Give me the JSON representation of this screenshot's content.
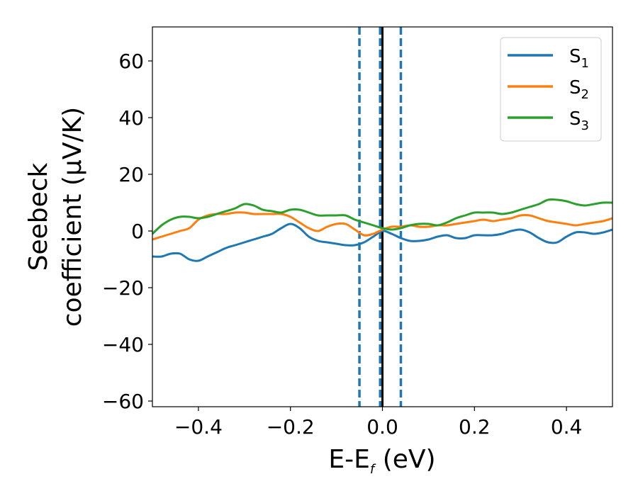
{
  "chart_data": {
    "type": "line",
    "xlabel": {
      "main": "E-E",
      "sub": "f",
      "tail": " (eV)"
    },
    "ylabel": {
      "line1": "Seebeck",
      "line2": "coefficient  (μV/K)"
    },
    "xlim": [
      -0.5,
      0.5
    ],
    "ylim": [
      -62,
      72
    ],
    "xticks": [
      -0.4,
      -0.2,
      0.0,
      0.2,
      0.4
    ],
    "xtick_labels": [
      "−0.4",
      "−0.2",
      "0.0",
      "0.2",
      "0.4"
    ],
    "yticks": [
      -60,
      -40,
      -20,
      0,
      20,
      40,
      60
    ],
    "ytick_labels": [
      "−60",
      "−40",
      "−20",
      "0",
      "20",
      "40",
      "60"
    ],
    "grid": false,
    "legend_position": "top-right",
    "vertical_lines": [
      {
        "x": -0.05,
        "style": "dashed",
        "color": "#1f77b4"
      },
      {
        "x": -0.005,
        "style": "dashed",
        "color": "#1f77b4"
      },
      {
        "x": 0.0,
        "style": "solid",
        "color": "#000000"
      },
      {
        "x": 0.04,
        "style": "dashed",
        "color": "#1f77b4"
      }
    ],
    "series": [
      {
        "name": "S",
        "sub": "1",
        "color": "#1f77b4",
        "x": [
          -0.5,
          -0.48,
          -0.46,
          -0.44,
          -0.42,
          -0.4,
          -0.38,
          -0.36,
          -0.34,
          -0.32,
          -0.3,
          -0.28,
          -0.26,
          -0.24,
          -0.22,
          -0.2,
          -0.18,
          -0.16,
          -0.14,
          -0.12,
          -0.1,
          -0.08,
          -0.06,
          -0.04,
          -0.02,
          0.0,
          0.02,
          0.04,
          0.06,
          0.08,
          0.1,
          0.12,
          0.14,
          0.16,
          0.18,
          0.2,
          0.22,
          0.24,
          0.26,
          0.28,
          0.3,
          0.32,
          0.34,
          0.36,
          0.38,
          0.4,
          0.42,
          0.44,
          0.46,
          0.48,
          0.5
        ],
        "y": [
          -9,
          -9,
          -8,
          -8,
          -10,
          -10.5,
          -9,
          -7.5,
          -6,
          -5,
          -4,
          -3,
          -2,
          -1,
          1,
          2.5,
          1,
          -2,
          -3.5,
          -4,
          -4.5,
          -5,
          -5,
          -4,
          -2,
          0,
          -1,
          -2.5,
          -3.5,
          -3.5,
          -3,
          -2,
          -1.5,
          -2.5,
          -2.5,
          -1.5,
          -1.5,
          -1.5,
          -1,
          0,
          0.5,
          -0.5,
          -2.5,
          -4,
          -4,
          -2,
          -0.5,
          -0.5,
          -1,
          -0.5,
          0.5
        ]
      },
      {
        "name": "S",
        "sub": "2",
        "color": "#ff7f0e",
        "x": [
          -0.5,
          -0.48,
          -0.46,
          -0.44,
          -0.42,
          -0.4,
          -0.38,
          -0.36,
          -0.34,
          -0.32,
          -0.3,
          -0.28,
          -0.26,
          -0.24,
          -0.22,
          -0.2,
          -0.18,
          -0.16,
          -0.14,
          -0.12,
          -0.1,
          -0.08,
          -0.06,
          -0.04,
          -0.02,
          0.0,
          0.02,
          0.04,
          0.06,
          0.08,
          0.1,
          0.12,
          0.14,
          0.16,
          0.18,
          0.2,
          0.22,
          0.24,
          0.26,
          0.28,
          0.3,
          0.32,
          0.34,
          0.36,
          0.38,
          0.4,
          0.42,
          0.44,
          0.46,
          0.48,
          0.5
        ],
        "y": [
          -3,
          -2,
          -1,
          0,
          1,
          4,
          5.5,
          6,
          6,
          6.5,
          6.5,
          6,
          6,
          6,
          6,
          5,
          3,
          1,
          0,
          1.5,
          2.5,
          2.5,
          0.5,
          -1.5,
          -1,
          0.5,
          1.5,
          1.5,
          2,
          1.5,
          1.5,
          2,
          2,
          2.5,
          3,
          3.5,
          4,
          3.5,
          4,
          4.5,
          5.5,
          5.5,
          4.5,
          3.5,
          3,
          2.5,
          2,
          2.5,
          3,
          3.5,
          4.5
        ]
      },
      {
        "name": "S",
        "sub": "3",
        "color": "#2ca02c",
        "x": [
          -0.5,
          -0.48,
          -0.46,
          -0.44,
          -0.42,
          -0.4,
          -0.38,
          -0.36,
          -0.34,
          -0.32,
          -0.3,
          -0.28,
          -0.26,
          -0.24,
          -0.22,
          -0.2,
          -0.18,
          -0.16,
          -0.14,
          -0.12,
          -0.1,
          -0.08,
          -0.06,
          -0.04,
          -0.02,
          0.0,
          0.02,
          0.04,
          0.06,
          0.08,
          0.1,
          0.12,
          0.14,
          0.16,
          0.18,
          0.2,
          0.22,
          0.24,
          0.26,
          0.28,
          0.3,
          0.32,
          0.34,
          0.36,
          0.38,
          0.4,
          0.42,
          0.44,
          0.46,
          0.48,
          0.5
        ],
        "y": [
          -1,
          2,
          4,
          5,
          5,
          4.5,
          5,
          6,
          7,
          8,
          9.5,
          9,
          7.5,
          7,
          6.5,
          7.5,
          7.5,
          6.5,
          5.5,
          5.5,
          5.5,
          5.5,
          4,
          3,
          2,
          1,
          0.5,
          1,
          2,
          2.5,
          2.5,
          2,
          3,
          4.5,
          5.5,
          6.5,
          6.5,
          6.5,
          6,
          6.5,
          7.5,
          8.5,
          9.5,
          11,
          11,
          10.5,
          9.5,
          9,
          9.5,
          10,
          10
        ]
      }
    ]
  }
}
